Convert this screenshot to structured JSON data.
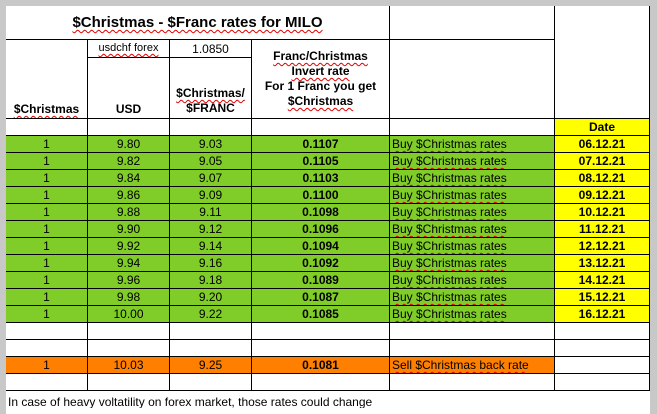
{
  "sheet": {
    "title": "$Christmas - $Franc rates for MILO",
    "forex_label": "usdchf forex",
    "forex_value": "1.0850",
    "headers": {
      "christmas": "$Christmas",
      "usd": "USD",
      "christmas_per_franc_line1": "$Christmas/",
      "christmas_per_franc_line2": "$FRANC",
      "invert_line1": "Franc/Christmas",
      "invert_line2": "Invert rate",
      "invert_line3": "For 1 Franc you get",
      "invert_line4": "$Christmas",
      "date": "Date"
    },
    "rows": [
      {
        "christmas": "1",
        "usd": "9.80",
        "per_franc": "9.03",
        "invert": "0.1107",
        "action": "Buy $Christmas rates",
        "date": "06.12.21"
      },
      {
        "christmas": "1",
        "usd": "9.82",
        "per_franc": "9.05",
        "invert": "0.1105",
        "action": "Buy $Christmas rates",
        "date": "07.12.21"
      },
      {
        "christmas": "1",
        "usd": "9.84",
        "per_franc": "9.07",
        "invert": "0.1103",
        "action": "Buy $Christmas rates",
        "date": "08.12.21"
      },
      {
        "christmas": "1",
        "usd": "9.86",
        "per_franc": "9.09",
        "invert": "0.1100",
        "action": "Buy $Christmas rates",
        "date": "09.12.21"
      },
      {
        "christmas": "1",
        "usd": "9.88",
        "per_franc": "9.11",
        "invert": "0.1098",
        "action": "Buy $Christmas rates",
        "date": "10.12.21"
      },
      {
        "christmas": "1",
        "usd": "9.90",
        "per_franc": "9.12",
        "invert": "0.1096",
        "action": "Buy $Christmas rates",
        "date": "11.12.21"
      },
      {
        "christmas": "1",
        "usd": "9.92",
        "per_franc": "9.14",
        "invert": "0.1094",
        "action": "Buy $Christmas rates",
        "date": "12.12.21"
      },
      {
        "christmas": "1",
        "usd": "9.94",
        "per_franc": "9.16",
        "invert": "0.1092",
        "action": "Buy $Christmas rates",
        "date": "13.12.21"
      },
      {
        "christmas": "1",
        "usd": "9.96",
        "per_franc": "9.18",
        "invert": "0.1089",
        "action": "Buy $Christmas rates",
        "date": "14.12.21"
      },
      {
        "christmas": "1",
        "usd": "9.98",
        "per_franc": "9.20",
        "invert": "0.1087",
        "action": "Buy $Christmas rates",
        "date": "15.12.21"
      },
      {
        "christmas": "1",
        "usd": "10.00",
        "per_franc": "9.22",
        "invert": "0.1085",
        "action": "Buy $Christmas rates",
        "date": "16.12.21"
      }
    ],
    "sell_row": {
      "christmas": "1",
      "usd": "10.03",
      "per_franc": "9.25",
      "invert": "0.1081",
      "action": "Sell $Christmas back rate"
    },
    "note": "In case of heavy voltatility on forex market, those rates could change",
    "colors": {
      "buy": "#80cc28",
      "date": "#ffff00",
      "sell": "#ff8000"
    }
  }
}
